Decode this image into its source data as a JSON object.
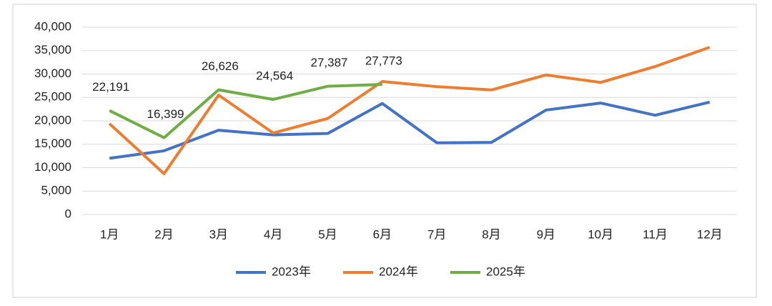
{
  "chart_data": {
    "type": "line",
    "categories": [
      "1月",
      "2月",
      "3月",
      "4月",
      "5月",
      "6月",
      "7月",
      "8月",
      "9月",
      "10月",
      "11月",
      "12月"
    ],
    "series": [
      {
        "name": "2023年",
        "color": "#4472c4",
        "values": [
          12000,
          13600,
          18000,
          17000,
          17300,
          23700,
          15300,
          15400,
          22300,
          23800,
          21200,
          24000
        ]
      },
      {
        "name": "2024年",
        "color": "#ed7d31",
        "values": [
          19400,
          8700,
          25500,
          17400,
          20500,
          28400,
          27300,
          26600,
          29800,
          28200,
          31600,
          35700
        ]
      },
      {
        "name": "2025年",
        "color": "#70ad47",
        "values": [
          22191,
          16399,
          26626,
          24564,
          27387,
          27773,
          null,
          null,
          null,
          null,
          null,
          null
        ],
        "value_labels": [
          "22,191",
          "16,399",
          "26,626",
          "24,564",
          "27,387",
          "27,773",
          null,
          null,
          null,
          null,
          null,
          null
        ]
      }
    ],
    "ylim": [
      0,
      40000
    ],
    "yticks": [
      0,
      {
        "value": 5000,
        "label": "5,000"
      },
      {
        "value": 10000,
        "label": "10,000"
      },
      {
        "value": 15000,
        "label": "15,000"
      },
      {
        "value": 20000,
        "label": "20,000"
      },
      {
        "value": 25000,
        "label": "25,000"
      },
      {
        "value": 30000,
        "label": "30,000"
      },
      {
        "value": 35000,
        "label": "35,000"
      },
      {
        "value": 40000,
        "label": "40,000"
      }
    ],
    "grid": true,
    "legend": "bottom"
  }
}
